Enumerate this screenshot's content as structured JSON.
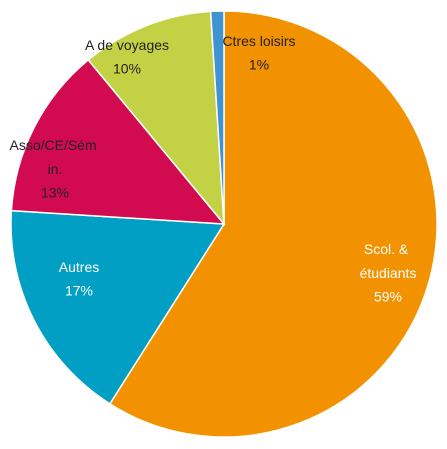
{
  "chart_data": {
    "type": "pie",
    "categories": [
      "Scol. & étudiants",
      "Autres",
      "Asso/CE/Sém in.",
      "A de voyages",
      "Ctres loisirs"
    ],
    "values": [
      59,
      17,
      13,
      10,
      1
    ],
    "value_labels": [
      "59%",
      "17%",
      "13%",
      "10%",
      "1%"
    ],
    "colors": [
      "#f39200",
      "#009fc3",
      "#d20a50",
      "#c3d245",
      "#3f93d0"
    ]
  }
}
